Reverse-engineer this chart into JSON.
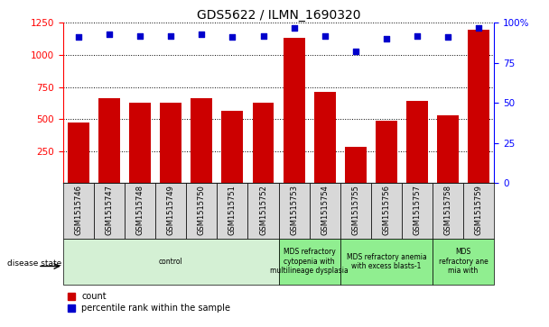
{
  "title": "GDS5622 / ILMN_1690320",
  "samples": [
    "GSM1515746",
    "GSM1515747",
    "GSM1515748",
    "GSM1515749",
    "GSM1515750",
    "GSM1515751",
    "GSM1515752",
    "GSM1515753",
    "GSM1515754",
    "GSM1515755",
    "GSM1515756",
    "GSM1515757",
    "GSM1515758",
    "GSM1515759"
  ],
  "counts": [
    470,
    665,
    630,
    630,
    660,
    565,
    630,
    1130,
    710,
    280,
    490,
    640,
    530,
    1200
  ],
  "percentile_ranks": [
    91,
    93,
    92,
    92,
    93,
    91,
    92,
    97,
    92,
    82,
    90,
    92,
    91,
    97
  ],
  "ylim_left": [
    0,
    1250
  ],
  "ylim_right": [
    0,
    100
  ],
  "yticks_left": [
    250,
    500,
    750,
    1000,
    1250
  ],
  "yticks_right": [
    0,
    25,
    50,
    75,
    100
  ],
  "bar_color": "#cc0000",
  "dot_color": "#0000cc",
  "tick_bg_color": "#d8d8d8",
  "disease_groups": [
    {
      "label": "control",
      "start": 0,
      "end": 7,
      "color": "#d4f0d4"
    },
    {
      "label": "MDS refractory\ncytopenia with\nmultilineage dysplasia",
      "start": 7,
      "end": 9,
      "color": "#90ee90"
    },
    {
      "label": "MDS refractory anemia\nwith excess blasts-1",
      "start": 9,
      "end": 12,
      "color": "#90ee90"
    },
    {
      "label": "MDS\nrefractory ane\nmia with",
      "start": 12,
      "end": 14,
      "color": "#90ee90"
    }
  ],
  "xlabel_disease": "disease state",
  "legend_count": "count",
  "legend_percentile": "percentile rank within the sample"
}
